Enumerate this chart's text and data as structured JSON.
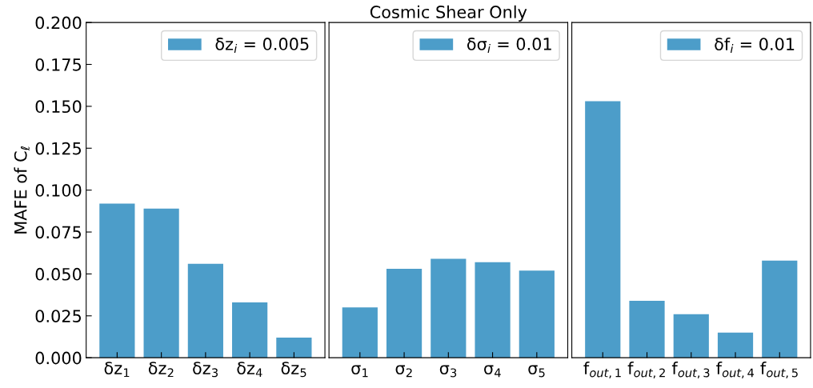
{
  "chart_data": [
    {
      "type": "bar",
      "ylabel": "MAFE of C$_{ℓ}$",
      "categories": [
        "δz$_{1}$",
        "δz$_{2}$",
        "δz$_{3}$",
        "δz$_{4}$",
        "δz$_{5}$"
      ],
      "series": [
        {
          "name": "δz$_{i}$ = 0.005",
          "color": "#4c9dc9",
          "values": [
            0.092,
            0.089,
            0.056,
            0.033,
            0.012
          ]
        }
      ],
      "ylim": [
        0,
        0.2
      ],
      "yticks": [
        {
          "value": 0,
          "label": "0.000"
        },
        {
          "value": 0.025,
          "label": "0.025"
        },
        {
          "value": 0.05,
          "label": "0.050"
        },
        {
          "value": 0.075,
          "label": "0.075"
        },
        {
          "value": 0.1,
          "label": "0.100"
        },
        {
          "value": 0.125,
          "label": "0.125"
        },
        {
          "value": 0.15,
          "label": "0.150"
        },
        {
          "value": 0.175,
          "label": "0.175"
        },
        {
          "value": 0.2,
          "label": "0.200"
        }
      ],
      "legend": "top right",
      "grid": false
    },
    {
      "type": "bar",
      "title": "Cosmic Shear Only",
      "categories": [
        "σ$_{1}$",
        "σ$_{2}$",
        "σ$_{3}$",
        "σ$_{4}$",
        "σ$_{5}$"
      ],
      "series": [
        {
          "name": "δσ$_{i}$ = 0.01",
          "color": "#4c9dc9",
          "values": [
            0.03,
            0.053,
            0.059,
            0.057,
            0.052
          ]
        }
      ],
      "ylim": [
        0,
        0.2
      ],
      "tick_labels": "x",
      "legend": "top right",
      "grid": false
    },
    {
      "type": "bar",
      "categories": [
        "f$_{out,1}$",
        "f$_{out,2}$",
        "f$_{out,3}$",
        "f$_{out,4}$",
        "f$_{out,5}$"
      ],
      "series": [
        {
          "name": "δf$_{i}$ = 0.01",
          "color": "#4c9dc9",
          "values": [
            0.153,
            0.034,
            0.026,
            0.015,
            0.058
          ]
        }
      ],
      "ylim": [
        0,
        0.2
      ],
      "tick_labels": "x",
      "legend": "top right",
      "grid": false
    }
  ]
}
